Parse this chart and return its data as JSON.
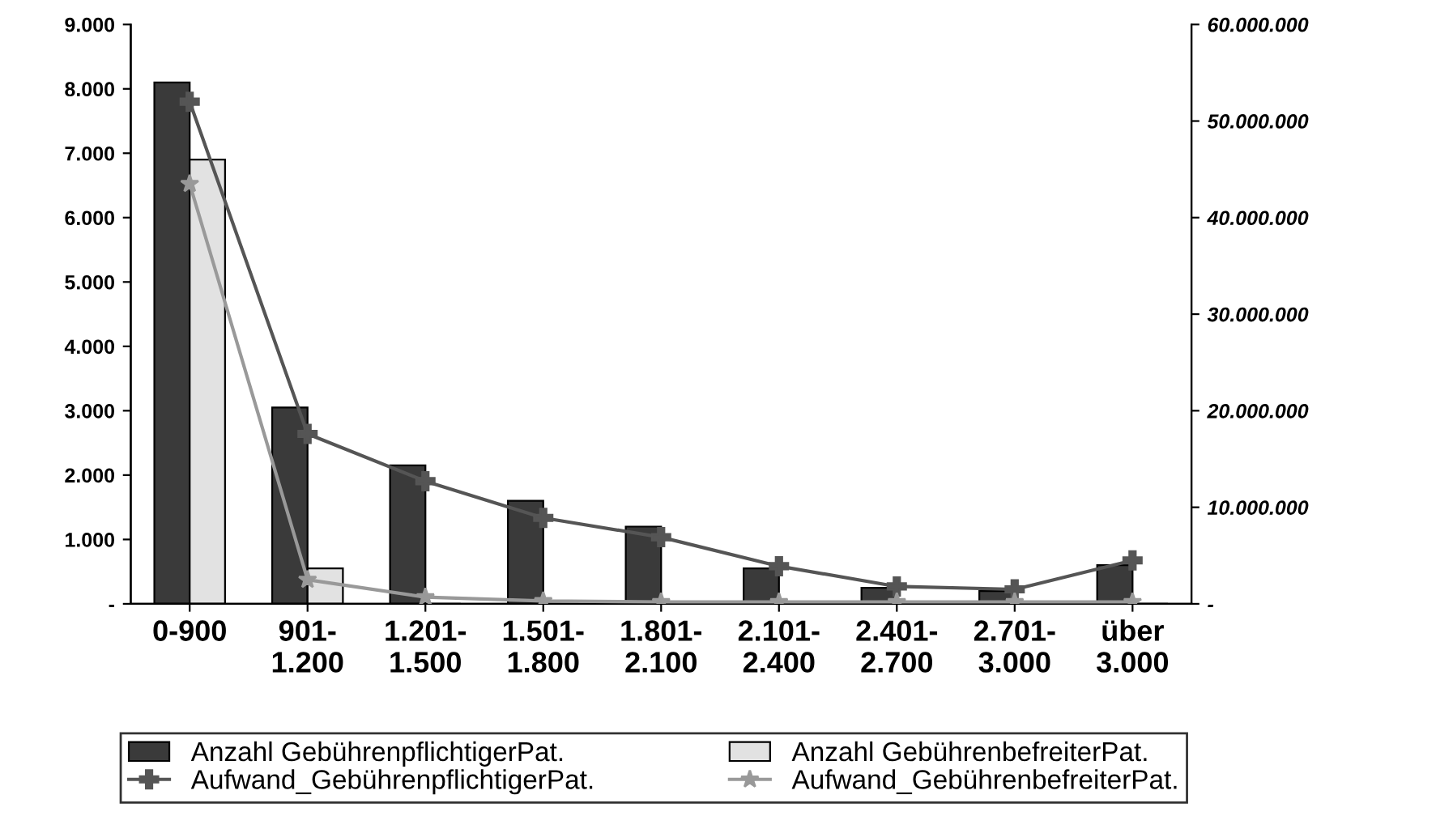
{
  "chart_data": {
    "type": "bar",
    "categories": [
      "0-900",
      "901-\n1.200",
      "1.201-\n1.500",
      "1.501-\n1.800",
      "1.801-\n2.100",
      "2.101-\n2.400",
      "2.401-\n2.700",
      "2.701-\n3.000",
      "über\n3.000"
    ],
    "series": [
      {
        "name": "Anzahl GebührenpflichtigerPat.",
        "color": "#3a3a3a",
        "values": [
          8100,
          3050,
          2150,
          1600,
          1200,
          550,
          250,
          200,
          600
        ]
      },
      {
        "name": "Anzahl GebührenbefreiterPat.",
        "color": "#e2e2e2",
        "values": [
          6900,
          550,
          null,
          null,
          null,
          null,
          null,
          null,
          null
        ]
      },
      {
        "name": "Aufwand_GebührenpflichtigerPat.",
        "type": "line",
        "axis": "y2",
        "color": "#555555",
        "marker": "cross",
        "values": [
          52000000,
          17600000,
          12700000,
          8900000,
          6900000,
          3900000,
          1800000,
          1500000,
          4500000
        ]
      },
      {
        "name": "Aufwand_GebührenbefreiterPat.",
        "type": "line",
        "axis": "y2",
        "color": "#999999",
        "marker": "star",
        "values": [
          43500000,
          2500000,
          700000,
          300000,
          200000,
          200000,
          200000,
          200000,
          200000
        ]
      }
    ],
    "ylim": [
      0,
      9000
    ],
    "yticks": [
      {
        "value": 0,
        "label": "-"
      },
      {
        "value": 1000,
        "label": "1.000"
      },
      {
        "value": 2000,
        "label": "2.000"
      },
      {
        "value": 3000,
        "label": "3.000"
      },
      {
        "value": 4000,
        "label": "4.000"
      },
      {
        "value": 5000,
        "label": "5.000"
      },
      {
        "value": 6000,
        "label": "6.000"
      },
      {
        "value": 7000,
        "label": "7.000"
      },
      {
        "value": 8000,
        "label": "8.000"
      },
      {
        "value": 9000,
        "label": "9.000"
      }
    ],
    "y2lim": [
      0,
      60000000
    ],
    "y2ticks": [
      {
        "value": 0,
        "label": "-"
      },
      {
        "value": 10000000,
        "label": "10.000.000"
      },
      {
        "value": 20000000,
        "label": "20.000.000"
      },
      {
        "value": 30000000,
        "label": "30.000.000"
      },
      {
        "value": 40000000,
        "label": "40.000.000"
      },
      {
        "value": 50000000,
        "label": "50.000.000"
      },
      {
        "value": 60000000,
        "label": "60.000.000"
      }
    ],
    "grid": false,
    "legend": "bottom"
  }
}
